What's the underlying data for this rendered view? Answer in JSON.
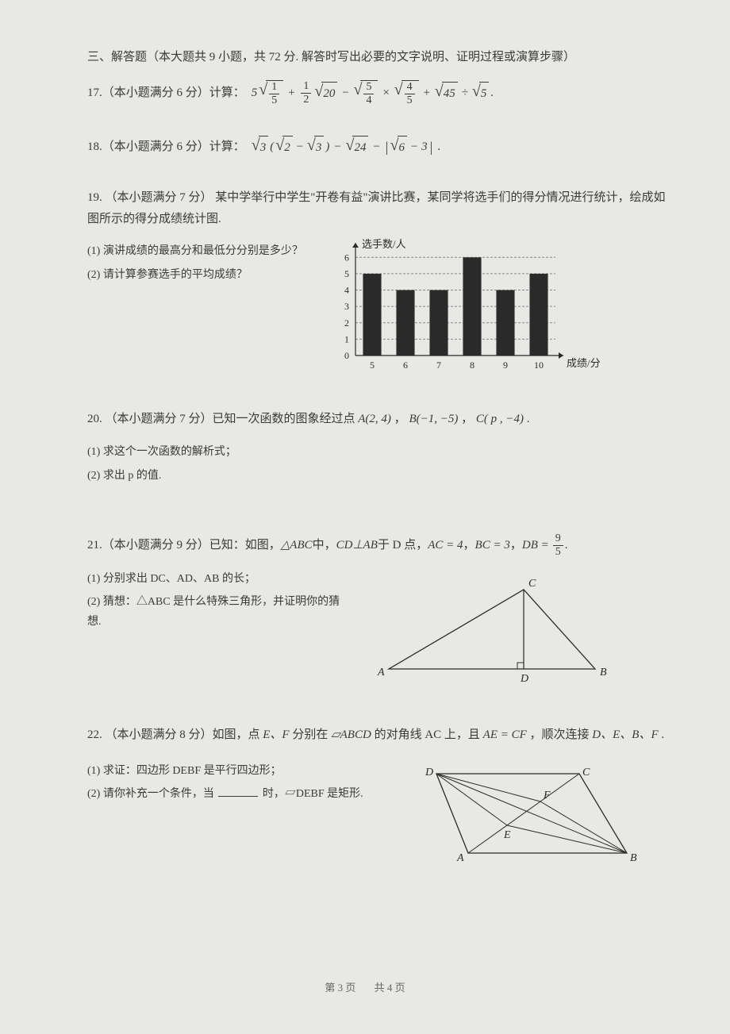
{
  "section": {
    "title": "三、解答题（本大题共 9 小题，共 72 分. 解答时写出必要的文字说明、证明过程或演算步骤）"
  },
  "q17": {
    "number": "17.",
    "prefix": "（本小题满分 6 分）计算：",
    "coef1": "5",
    "frac1_num": "1",
    "frac1_den": "5",
    "plus1": "+",
    "frac2_num": "1",
    "frac2_den": "2",
    "sqrt20": "20",
    "minus1": "−",
    "frac3_num": "5",
    "frac3_den": "4",
    "times": "×",
    "frac4_num": "4",
    "frac4_den": "5",
    "plus2": "+",
    "sqrt45": "45",
    "div": "÷",
    "sqrt5": "5",
    "period": "."
  },
  "q18": {
    "number": "18.",
    "prefix": "（本小题满分 6 分）计算：",
    "sqrt3": "3",
    "lparen": "(",
    "sqrt2": "2",
    "minus1": "−",
    "sqrt3b": "3",
    "rparen": ")",
    "minus2": "−",
    "sqrt24": "24",
    "minus3": "−",
    "bar_l": "|",
    "sqrt6": "6",
    "minus4": "−",
    "three": "3",
    "bar_r": "|",
    "period": "."
  },
  "q19": {
    "number": "19.",
    "prefix": "（本小题满分 7 分）",
    "text1": "某中学举行中学生\"开卷有益\"演讲比赛，某同学将选手们的得分情况进行统计，绘成如图所示的得分成绩统计图.",
    "sub1": "(1) 演讲成绩的最高分和最低分分别是多少？",
    "sub2": "(2) 请计算参赛选手的平均成绩？",
    "chart": {
      "type": "bar",
      "y_label": "选手数/人",
      "x_label": "成绩/分",
      "categories": [
        "5",
        "6",
        "7",
        "8",
        "9",
        "10"
      ],
      "values": [
        5,
        4,
        4,
        6,
        4,
        5
      ],
      "y_ticks": [
        "0",
        "1",
        "2",
        "3",
        "4",
        "5",
        "6"
      ],
      "ylim": [
        0,
        6.5
      ],
      "bar_color": "#2a2a2a",
      "grid_color": "#888",
      "axis_color": "#2a2a2a",
      "background_color": "#e8e8e4",
      "bar_width": 0.55,
      "grid_dash": "3,2"
    }
  },
  "q20": {
    "number": "20.",
    "prefix": "（本小题满分 7 分）已知一次函数的图象经过点 ",
    "ptA": "A(2, 4)",
    "sep1": "，",
    "ptB": "B(−1, −5)",
    "sep2": "，",
    "ptC": "C( p , −4)",
    "period": ".",
    "sub1": "(1) 求这个一次函数的解析式；",
    "sub2": "(2) 求出 p 的值."
  },
  "q21": {
    "number": "21.",
    "prefix": "（本小题满分 9 分）已知：如图，",
    "tri": "△ABC",
    "mid1": "中，",
    "cd": "CD⊥AB",
    "mid2": "于 D 点，",
    "ac": "AC = 4",
    "sep1": "，",
    "bc": "BC = 3",
    "sep2": "，",
    "db_label": "DB =",
    "db_num": "9",
    "db_den": "5",
    "period": ".",
    "sub1": "(1) 分别求出 DC、AD、AB 的长；",
    "sub2": "(2) 猜想：△ABC 是什么特殊三角形，并证明你的猜想.",
    "fig": {
      "A": "A",
      "B": "B",
      "C": "C",
      "D": "D",
      "stroke": "#2a2a2a"
    }
  },
  "q22": {
    "number": "22.",
    "prefix": "（本小题满分 8 分）如图，点 ",
    "ef": "E、F",
    "mid1": " 分别在 ",
    "para": "▱ABCD",
    "mid2": " 的对角线 AC 上，且 ",
    "ae_cf": "AE = CF",
    "mid3": "，顺次连接 ",
    "debf_list": "D、E、B、F",
    "period": ".",
    "sub1": "(1) 求证：四边形 DEBF 是平行四边形；",
    "sub2_a": "(2) 请你补充一个条件，当",
    "sub2_b": "时，▱DEBF 是矩形.",
    "fig": {
      "A": "A",
      "B": "B",
      "C": "C",
      "D": "D",
      "E": "E",
      "F": "F",
      "stroke": "#2a2a2a"
    }
  },
  "footer": {
    "page_current": "第 3 页",
    "page_total": "共 4 页"
  }
}
